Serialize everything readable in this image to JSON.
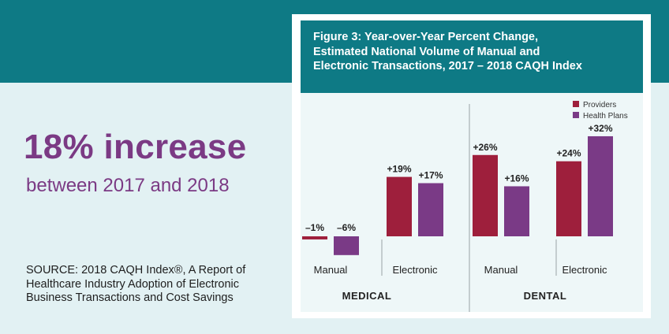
{
  "left_panel": {
    "headline": "18% increase",
    "subheadline": "between 2017 and 2018",
    "source_lines": [
      "SOURCE: 2018 CAQH Index®, A Report of",
      "Healthcare Industry Adoption of Electronic",
      "Business Transactions and Cost Savings"
    ]
  },
  "colors": {
    "teal": "#0e7a85",
    "providers": "#9e1f3c",
    "health_plans": "#7a3a86",
    "headline": "#7b3a84"
  },
  "chart_data": {
    "type": "bar",
    "title_lines": [
      "Figure 3: Year-over-Year Percent Change,",
      "Estimated National Volume of Manual and",
      "Electronic Transactions, 2017 – 2018 CAQH Index"
    ],
    "groups": [
      "MEDICAL",
      "DENTAL"
    ],
    "categories": [
      "Manual",
      "Electronic",
      "Manual",
      "Electronic"
    ],
    "category_group": [
      0,
      0,
      1,
      1
    ],
    "series": [
      {
        "name": "Providers",
        "values": [
          -1,
          19,
          26,
          24
        ],
        "labels": [
          "–1%",
          "+19%",
          "+26%",
          "+24%"
        ]
      },
      {
        "name": "Health Plans",
        "values": [
          -6,
          17,
          16,
          32
        ],
        "labels": [
          "–6%",
          "+17%",
          "+16%",
          "+32%"
        ]
      }
    ],
    "ylim": [
      -8,
      35
    ],
    "legend": "top-right",
    "grid": false
  }
}
